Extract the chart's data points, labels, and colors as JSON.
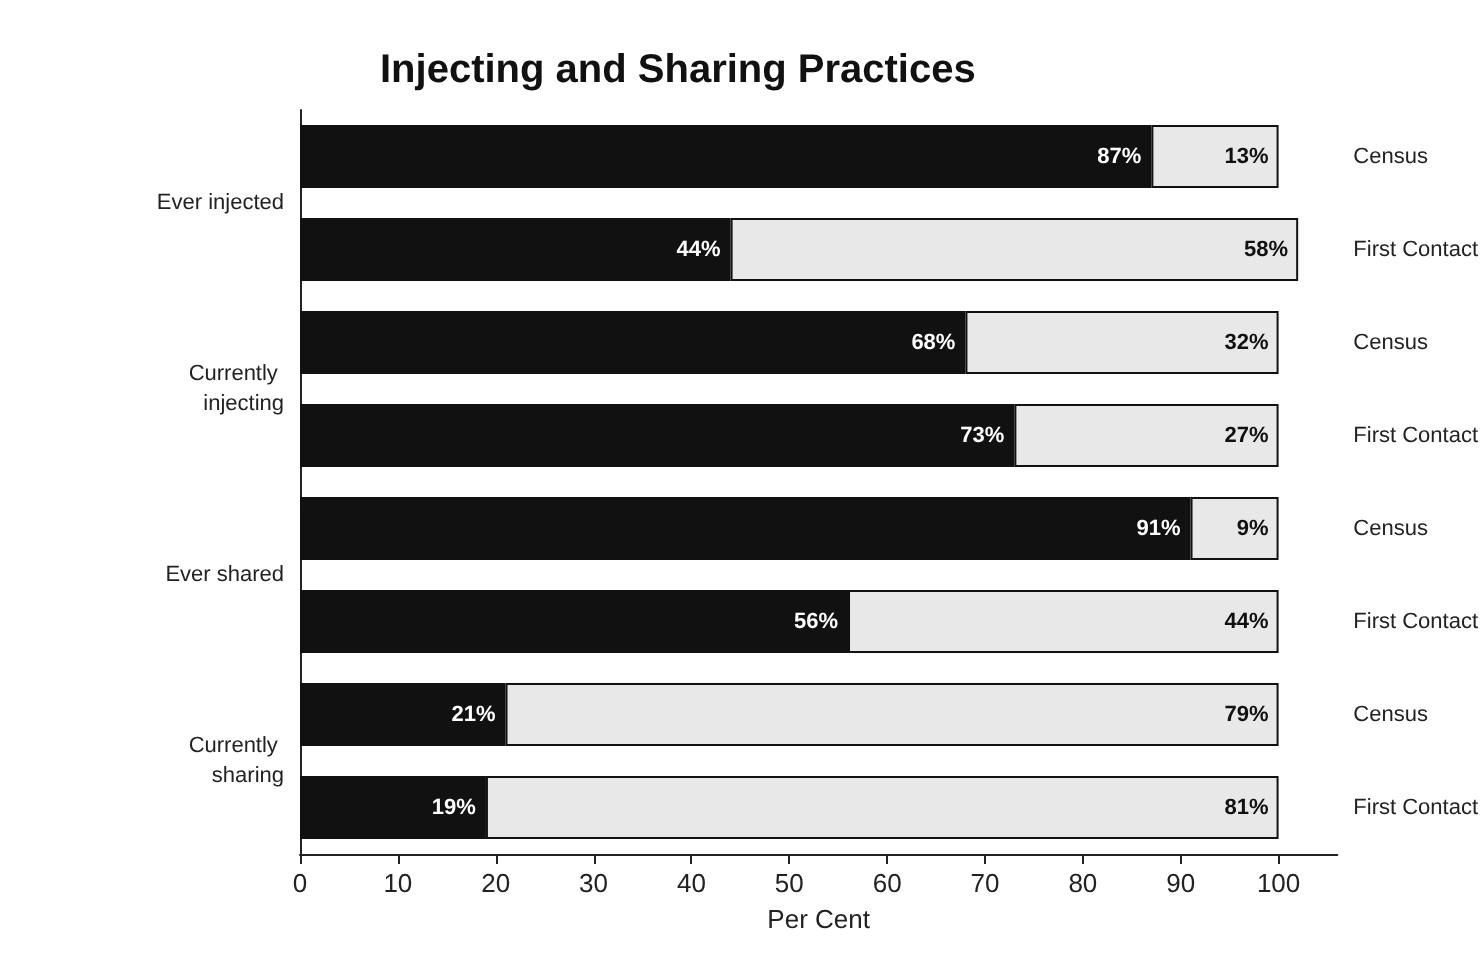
{
  "chart_data": {
    "type": "bar",
    "orientation": "horizontal",
    "stacked": true,
    "title": "Injecting and Sharing Practices",
    "xlabel": "Per Cent",
    "categories": [
      "Census",
      "First Contact",
      "Census",
      "First Contact",
      "Census",
      "First Contact",
      "Census",
      "First Contact"
    ],
    "series": [
      {
        "color": "#111111",
        "values": [
          87,
          44,
          68,
          73,
          91,
          56,
          21,
          19
        ],
        "value_labels": [
          "87%",
          "44%",
          "68%",
          "73%",
          "91%",
          "56%",
          "21%",
          "19%"
        ]
      },
      {
        "color": "#e8e8e8",
        "values": [
          13,
          58,
          32,
          27,
          9,
          44,
          79,
          81
        ],
        "value_labels": [
          "13%",
          "58%",
          "32%",
          "27%",
          "9%",
          "44%",
          "79%",
          "81%"
        ]
      }
    ],
    "annotations": [
      "Ever injected",
      "Currently injecting",
      "Ever shared",
      "Currently sharing"
    ],
    "xlim": [
      0,
      106
    ],
    "xticks": [
      0,
      10,
      20,
      30,
      40,
      50,
      60,
      70,
      80,
      90,
      100
    ]
  }
}
